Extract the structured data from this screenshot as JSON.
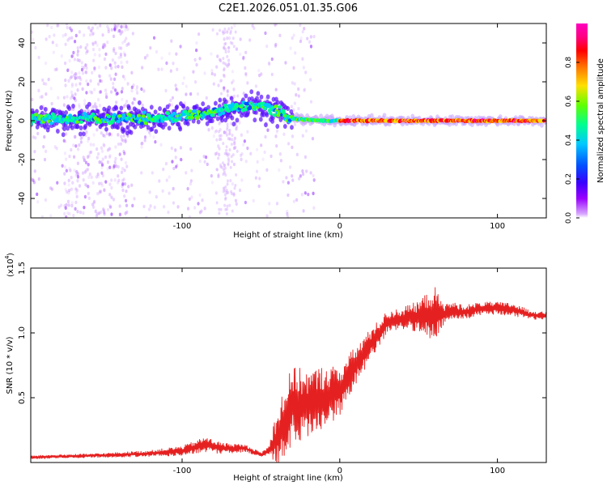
{
  "title": "C2E1.2026.051.01.35.G06",
  "colors": {
    "snr_line": "#e52020",
    "axis": "#000000",
    "colormap": [
      "#9a00ff",
      "#3a00ff",
      "#0050ff",
      "#00c8ff",
      "#00ff90",
      "#60ff00",
      "#ffe000",
      "#ff7000",
      "#ff0000",
      "#ff0080",
      "#ff00c0"
    ]
  },
  "chart_data": [
    {
      "type": "heatmap",
      "name": "spectrogram",
      "xlabel": "Height of straight line (km)",
      "ylabel": "Frequency (Hz)",
      "xlim": [
        -196,
        131
      ],
      "ylim": [
        -50,
        50
      ],
      "xticks": [
        -100,
        0,
        100
      ],
      "xtick_labels": [
        "-100",
        "0",
        "100"
      ],
      "yticks": [
        -40,
        -20,
        0,
        20,
        40
      ],
      "ytick_labels": [
        "-40",
        "-20",
        "0",
        "20",
        "40"
      ],
      "ridge": {
        "x": [
          -196,
          -160,
          -120,
          -90,
          -70,
          -55,
          -45,
          -38,
          -30,
          -20,
          -10,
          0,
          20,
          50,
          80,
          110,
          131
        ],
        "frequency": [
          1,
          1,
          1,
          3,
          6,
          8,
          7,
          4,
          1,
          0.5,
          0,
          0,
          0,
          0,
          0,
          0,
          0
        ]
      },
      "colorbar": {
        "label": "Normalized spectral amplitude",
        "range": [
          0,
          1
        ],
        "ticks": [
          0.0,
          0.2,
          0.4,
          0.6,
          0.8
        ],
        "tick_labels": [
          "0.0",
          "0.2",
          "0.4",
          "0.6",
          "0.8"
        ]
      }
    },
    {
      "type": "line",
      "name": "snr",
      "xlabel": "Height of straight line (km)",
      "ylabel": "SNR (10 * v/v)",
      "multiplier_label": "(x10",
      "multiplier_exponent": "4",
      "xlim": [
        -196,
        131
      ],
      "ylim": [
        0,
        15000
      ],
      "xticks": [
        -100,
        0,
        100
      ],
      "xtick_labels": [
        "-100",
        "0",
        "100"
      ],
      "yticks": [
        5000,
        10000,
        15000
      ],
      "ytick_labels": [
        "0.5",
        "1.0",
        "1.5"
      ],
      "envelope": {
        "x": [
          -196,
          -150,
          -120,
          -100,
          -85,
          -75,
          -60,
          -50,
          -45,
          -40,
          -35,
          -30,
          -20,
          -10,
          0,
          10,
          20,
          30,
          40,
          50,
          60,
          65,
          70,
          80,
          90,
          100,
          110,
          120,
          131
        ],
        "mean": [
          400,
          550,
          700,
          900,
          1400,
          1100,
          1100,
          600,
          900,
          1800,
          3000,
          4500,
          4500,
          5000,
          5500,
          7500,
          9200,
          10800,
          11100,
          11300,
          11500,
          11400,
          11700,
          11600,
          11900,
          11900,
          11800,
          11400,
          11300
        ],
        "amplitude": [
          150,
          180,
          250,
          400,
          600,
          450,
          300,
          200,
          400,
          2500,
          3000,
          3000,
          2600,
          2500,
          2000,
          1500,
          1200,
          900,
          900,
          1200,
          2200,
          900,
          700,
          600,
          500,
          500,
          500,
          400,
          300
        ]
      }
    }
  ]
}
